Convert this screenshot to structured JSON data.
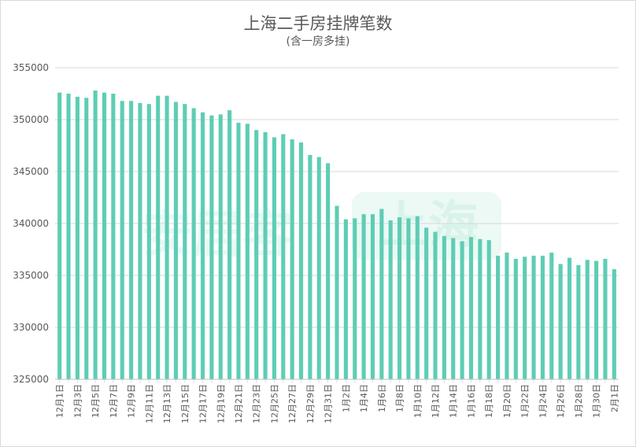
{
  "chart_data": {
    "type": "bar",
    "title": "上海二手房挂牌笔数",
    "subtitle": "(含一房多挂)",
    "xlabel": "",
    "ylabel": "",
    "ylim": [
      325000,
      355000
    ],
    "yticks": [
      325000,
      330000,
      335000,
      340000,
      345000,
      350000,
      355000
    ],
    "grid": true,
    "bar_color": "#5ecdb5",
    "categories": [
      "12月1日",
      "12月2日",
      "12月3日",
      "12月4日",
      "12月5日",
      "12月6日",
      "12月7日",
      "12月8日",
      "12月9日",
      "12月10日",
      "12月11日",
      "12月12日",
      "12月13日",
      "12月14日",
      "12月15日",
      "12月16日",
      "12月17日",
      "12月18日",
      "12月19日",
      "12月20日",
      "12月21日",
      "12月22日",
      "12月23日",
      "12月24日",
      "12月25日",
      "12月26日",
      "12月27日",
      "12月28日",
      "12月29日",
      "12月30日",
      "12月31日",
      "1月1日",
      "1月2日",
      "1月3日",
      "1月4日",
      "1月5日",
      "1月6日",
      "1月7日",
      "1月8日",
      "1月9日",
      "1月10日",
      "1月11日",
      "1月12日",
      "1月13日",
      "1月14日",
      "1月15日",
      "1月16日",
      "1月17日",
      "1月18日",
      "1月19日",
      "1月20日",
      "1月21日",
      "1月22日",
      "1月23日",
      "1月24日",
      "1月25日",
      "1月26日",
      "1月27日",
      "1月28日",
      "1月29日",
      "1月30日",
      "1月31日",
      "2月1日"
    ],
    "shown_labels": [
      "12月1日",
      "12月3日",
      "12月5日",
      "12月7日",
      "12月9日",
      "12月11日",
      "12月13日",
      "12月15日",
      "12月17日",
      "12月19日",
      "12月21日",
      "12月23日",
      "12月25日",
      "12月27日",
      "12月29日",
      "12月31日",
      "1月2日",
      "1月4日",
      "1月6日",
      "1月8日",
      "1月10日",
      "1月12日",
      "1月14日",
      "1月16日",
      "1月18日",
      "1月20日",
      "1月22日",
      "1月24日",
      "1月26日",
      "1月28日",
      "1月30日",
      "2月1日"
    ],
    "values": [
      352600,
      352500,
      352200,
      352100,
      352800,
      352600,
      352500,
      351800,
      351800,
      351600,
      351500,
      352300,
      352300,
      351700,
      351500,
      351100,
      350700,
      350400,
      350500,
      350900,
      349700,
      349600,
      349000,
      348800,
      348300,
      348600,
      348100,
      347800,
      346600,
      346400,
      345800,
      341700,
      340400,
      340500,
      340900,
      340900,
      341400,
      340300,
      340600,
      340500,
      340700,
      339600,
      339200,
      338800,
      338600,
      338300,
      338700,
      338500,
      338400,
      336900,
      337200,
      336600,
      336800,
      336900,
      336900,
      337200,
      336100,
      336700,
      336000,
      336500,
      336400,
      336600,
      335600
    ]
  },
  "watermark": {
    "left_text": "安居客",
    "right_text": "上海"
  }
}
